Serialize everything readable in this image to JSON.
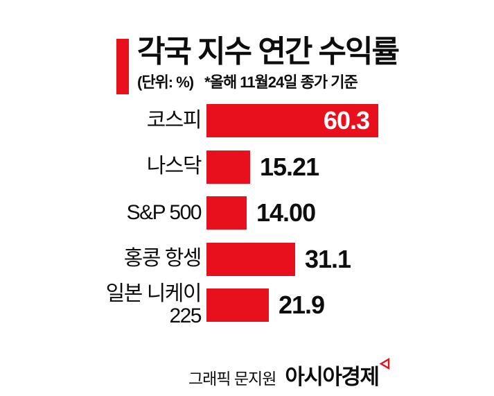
{
  "header": {
    "title": "각국 지수 연간 수익률",
    "unit_note": "(단위: %)",
    "date_note": "*올해 11월24일 종가 기준"
  },
  "chart_data": {
    "type": "bar",
    "orientation": "horizontal",
    "title": "각국 지수 연간 수익률",
    "unit": "%",
    "note": "올해 11월24일 종가 기준",
    "categories": [
      "코스피",
      "나스닥",
      "S&P 500",
      "홍콩 항셍",
      "일본 니케이 225"
    ],
    "values": [
      60.3,
      15.21,
      14.0,
      31.1,
      21.9
    ],
    "value_labels": [
      "60.3",
      "15.21",
      "14.00",
      "31.1",
      "21.9"
    ],
    "xlim": [
      0,
      62
    ],
    "grid": false,
    "legend": false,
    "bar_color": "#e8101c",
    "max_value_label_inside_bar": true
  },
  "rows": [
    {
      "label_lines": [
        "코스피"
      ],
      "value_label": "60.3",
      "value_position": "inside"
    },
    {
      "label_lines": [
        "나스닥"
      ],
      "value_label": "15.21",
      "value_position": "outside"
    },
    {
      "label_lines": [
        "S&P 500"
      ],
      "value_label": "14.00",
      "value_position": "outside"
    },
    {
      "label_lines": [
        "홍콩 항셍"
      ],
      "value_label": "31.1",
      "value_position": "outside"
    },
    {
      "label_lines": [
        "일본 니케이",
        "225"
      ],
      "value_label": "21.9",
      "value_position": "outside"
    }
  ],
  "footer": {
    "credit": "그래픽 문지원",
    "brand": "아시아경제"
  },
  "colors": {
    "accent_red": "#e8101c",
    "text": "#0d0d0d",
    "background": "#ffffff",
    "inside_value_text": "#ffffff"
  }
}
